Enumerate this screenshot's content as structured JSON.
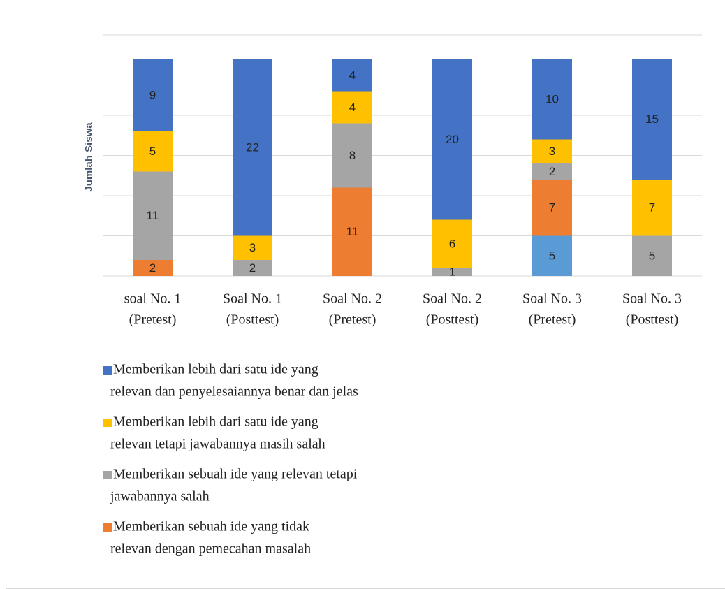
{
  "chart_data": {
    "type": "stacked_bar",
    "y_label": "Jumlah Siswa",
    "categories": [
      [
        "soal No. 1",
        "(Pretest)"
      ],
      [
        "Soal No. 1",
        "(Posttest)"
      ],
      [
        "Soal No. 2",
        "(Pretest)"
      ],
      [
        "Soal No. 2",
        "(Posttest)"
      ],
      [
        "Soal No. 3",
        "(Pretest)"
      ],
      [
        "Soal No. 3",
        "(Posttest)"
      ]
    ],
    "series": [
      {
        "color": "#5b9bd5",
        "values": [
          null,
          null,
          null,
          null,
          5,
          null
        ]
      },
      {
        "name": [
          "Memberikan sebuah ide yang tidak",
          "relevan dengan pemecahan masalah"
        ],
        "color": "#ed7d31",
        "values": [
          2,
          null,
          11,
          null,
          7,
          null
        ]
      },
      {
        "name": [
          "Memberikan sebuah ide yang relevan tetapi",
          "jawabannya salah"
        ],
        "color": "#a5a5a5",
        "values": [
          11,
          2,
          8,
          1,
          2,
          5
        ]
      },
      {
        "name": [
          "Memberikan lebih dari satu ide yang",
          "relevan tetapi jawabannya masih salah"
        ],
        "color": "#ffc000",
        "values": [
          5,
          3,
          4,
          6,
          3,
          7
        ]
      },
      {
        "name": [
          "Memberikan lebih dari satu ide yang",
          "relevan dan penyelesaiannya benar dan jelas"
        ],
        "color": "#4472c4",
        "values": [
          9,
          22,
          4,
          20,
          10,
          15
        ]
      }
    ],
    "ylim": [
      0,
      30
    ],
    "yticks": [
      0,
      5,
      10,
      15,
      20,
      25,
      30
    ],
    "grid": true,
    "legend": "bottom"
  }
}
